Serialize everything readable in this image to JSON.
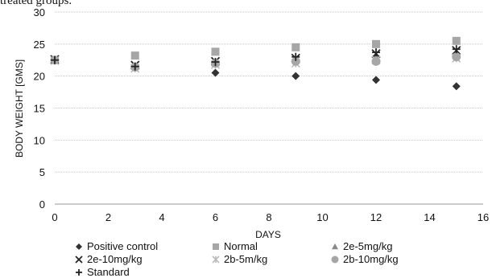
{
  "caption_fragment": "treated groups.",
  "chart_data": {
    "type": "scatter",
    "title": "",
    "xlabel": "DAYS",
    "ylabel": "BODY WEIGHT [GMS]",
    "xlim": [
      0,
      16
    ],
    "ylim": [
      0,
      30
    ],
    "x_ticks": [
      "0",
      "2",
      "4",
      "6",
      "8",
      "10",
      "12",
      "14",
      "16"
    ],
    "y_ticks": [
      "0",
      "5",
      "10",
      "15",
      "20",
      "25",
      "30"
    ],
    "grid": "horizontal",
    "legend_position": "bottom",
    "series": [
      {
        "name": "Positive control",
        "marker": "diamond",
        "color": "#333333",
        "x": [
          0,
          3,
          6,
          9,
          12,
          15
        ],
        "y": [
          22.5,
          21.3,
          20.5,
          20.0,
          19.4,
          18.4
        ]
      },
      {
        "name": "Normal",
        "marker": "square",
        "color": "#a6a6a6",
        "x": [
          0,
          3,
          6,
          9,
          12,
          15
        ],
        "y": [
          22.5,
          23.2,
          23.8,
          24.5,
          25.0,
          25.5
        ]
      },
      {
        "name": "2e-5mg/kg",
        "marker": "triangle",
        "color": "#888888",
        "x": [
          0,
          3,
          6,
          9,
          12,
          15
        ],
        "y": [
          22.5,
          21.5,
          22.0,
          22.5,
          23.0,
          23.5
        ]
      },
      {
        "name": "2e-10mg/kg",
        "marker": "x",
        "color": "#222222",
        "x": [
          0,
          3,
          6,
          9,
          12,
          15
        ],
        "y": [
          22.6,
          21.7,
          22.3,
          22.8,
          23.5,
          24.0
        ]
      },
      {
        "name": "2b-5m/kg",
        "marker": "star",
        "color": "#bbbbbb",
        "x": [
          0,
          3,
          6,
          9,
          12,
          15
        ],
        "y": [
          22.4,
          21.2,
          21.8,
          22.0,
          22.5,
          22.8
        ]
      },
      {
        "name": "2b-10mg/kg",
        "marker": "circle",
        "color": "#a6a6a6",
        "x": [
          0,
          3,
          6,
          9,
          12,
          15
        ],
        "y": [
          22.5,
          21.4,
          22.0,
          22.3,
          22.3,
          23.0
        ]
      },
      {
        "name": "Standard",
        "marker": "plus",
        "color": "#222222",
        "x": [
          0,
          3,
          6,
          9,
          12,
          15
        ],
        "y": [
          22.5,
          21.5,
          22.2,
          23.0,
          23.7,
          24.2
        ]
      }
    ]
  }
}
